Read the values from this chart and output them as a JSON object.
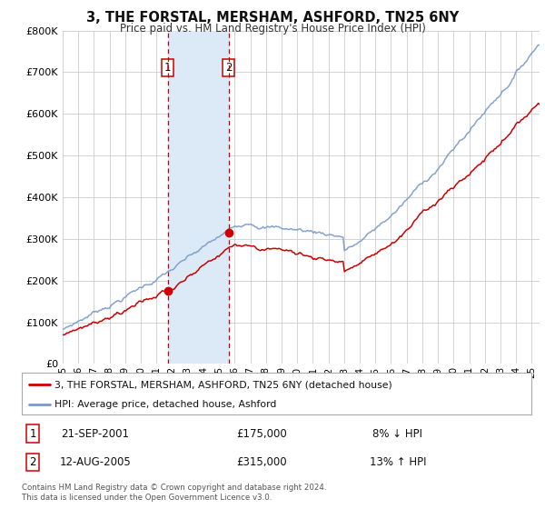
{
  "title": "3, THE FORSTAL, MERSHAM, ASHFORD, TN25 6NY",
  "subtitle": "Price paid vs. HM Land Registry's House Price Index (HPI)",
  "background_color": "#ffffff",
  "plot_bg_color": "#ffffff",
  "grid_color": "#cccccc",
  "ylim": [
    0,
    800000
  ],
  "yticks": [
    0,
    100000,
    200000,
    300000,
    400000,
    500000,
    600000,
    700000,
    800000
  ],
  "ytick_labels": [
    "£0",
    "£100K",
    "£200K",
    "£300K",
    "£400K",
    "£500K",
    "£600K",
    "£700K",
    "£800K"
  ],
  "xmin": 1995.0,
  "xmax": 2025.5,
  "sale1_date": 2001.72,
  "sale1_price": 175000,
  "sale1_label": "1",
  "sale2_date": 2005.61,
  "sale2_price": 315000,
  "sale2_label": "2",
  "shade_color": "#dce9f7",
  "vline_color": "#cc0000",
  "hpi_line_color": "#7799cc",
  "price_line_color": "#cc0000",
  "legend_label_price": "3, THE FORSTAL, MERSHAM, ASHFORD, TN25 6NY (detached house)",
  "legend_label_hpi": "HPI: Average price, detached house, Ashford",
  "table_row1": [
    "1",
    "21-SEP-2001",
    "£175,000",
    "8% ↓ HPI"
  ],
  "table_row2": [
    "2",
    "12-AUG-2005",
    "£315,000",
    "13% ↑ HPI"
  ],
  "footnote1": "Contains HM Land Registry data © Crown copyright and database right 2024.",
  "footnote2": "This data is licensed under the Open Government Licence v3.0."
}
